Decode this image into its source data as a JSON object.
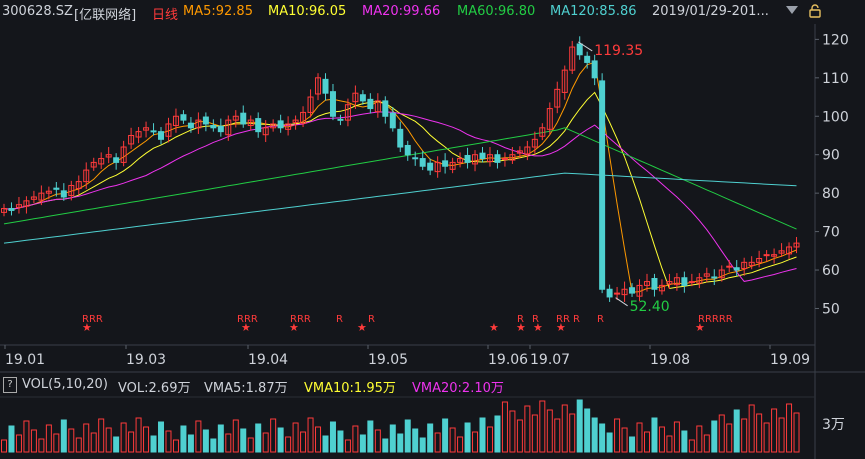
{
  "header": {
    "code": "300628.SZ",
    "name": "[亿联网络]",
    "period": "日线",
    "ma5": "MA5:92.85",
    "ma10": "MA10:96.05",
    "ma20": "MA20:99.66",
    "ma60": "MA60:96.80",
    "ma120": "MA120:85.86",
    "date_range": "2019/01/29-201...",
    "colors": {
      "ma5": "#ff9900",
      "ma10": "#ffff33",
      "ma20": "#ee33ee",
      "ma60": "#22cc44",
      "ma120": "#4fd0d0",
      "period": "#ff3b3b"
    }
  },
  "annotations": {
    "high": "119.35",
    "low": "52.40"
  },
  "volume_header": {
    "label": "VOL(5,10,20)",
    "vol": "VOL:2.69万",
    "vma5": "VMA5:1.87万",
    "vma10": "VMA10:1.95万",
    "vma20": "VMA20:2.10万",
    "axis_tick": "3万",
    "help": "?"
  },
  "chart_data": {
    "type": "candlestick",
    "y_ticks": [
      120,
      110,
      100,
      90,
      80,
      70,
      60,
      50
    ],
    "ylim": [
      40.5,
      124
    ],
    "x_ticks": [
      "19.01",
      "19.03",
      "19.04",
      "19.05",
      "19.06",
      "19.07",
      "19.08",
      "19.09"
    ],
    "markers": {
      "R_labels": [
        "RRR",
        "RRR",
        "RRR",
        "R",
        "R",
        "R",
        "R",
        "RR",
        "R",
        "R",
        "RRRRR"
      ],
      "star": "★"
    },
    "closes": [
      76,
      75.5,
      77,
      78,
      79,
      80,
      80.5,
      81,
      79,
      82,
      83,
      86,
      88,
      89,
      90,
      88,
      92,
      95,
      96,
      97,
      96,
      94,
      98,
      100,
      99,
      97,
      99,
      98,
      97,
      96,
      99,
      100,
      98,
      99,
      96,
      97,
      98,
      97,
      98,
      99,
      101,
      105,
      110,
      106,
      100,
      99,
      103,
      106,
      104,
      102,
      104,
      100,
      97,
      92,
      90,
      89,
      87,
      86,
      88,
      87,
      88,
      89,
      88,
      90,
      89,
      90,
      88,
      89,
      90,
      91,
      92,
      94,
      97,
      102,
      107,
      112,
      118,
      116,
      114,
      110,
      55,
      53,
      54,
      55,
      54,
      56,
      57,
      55,
      56,
      57,
      58,
      56,
      57,
      58,
      59,
      58,
      60,
      61,
      60,
      62,
      62,
      63,
      64,
      64,
      65,
      66,
      67
    ]
  }
}
